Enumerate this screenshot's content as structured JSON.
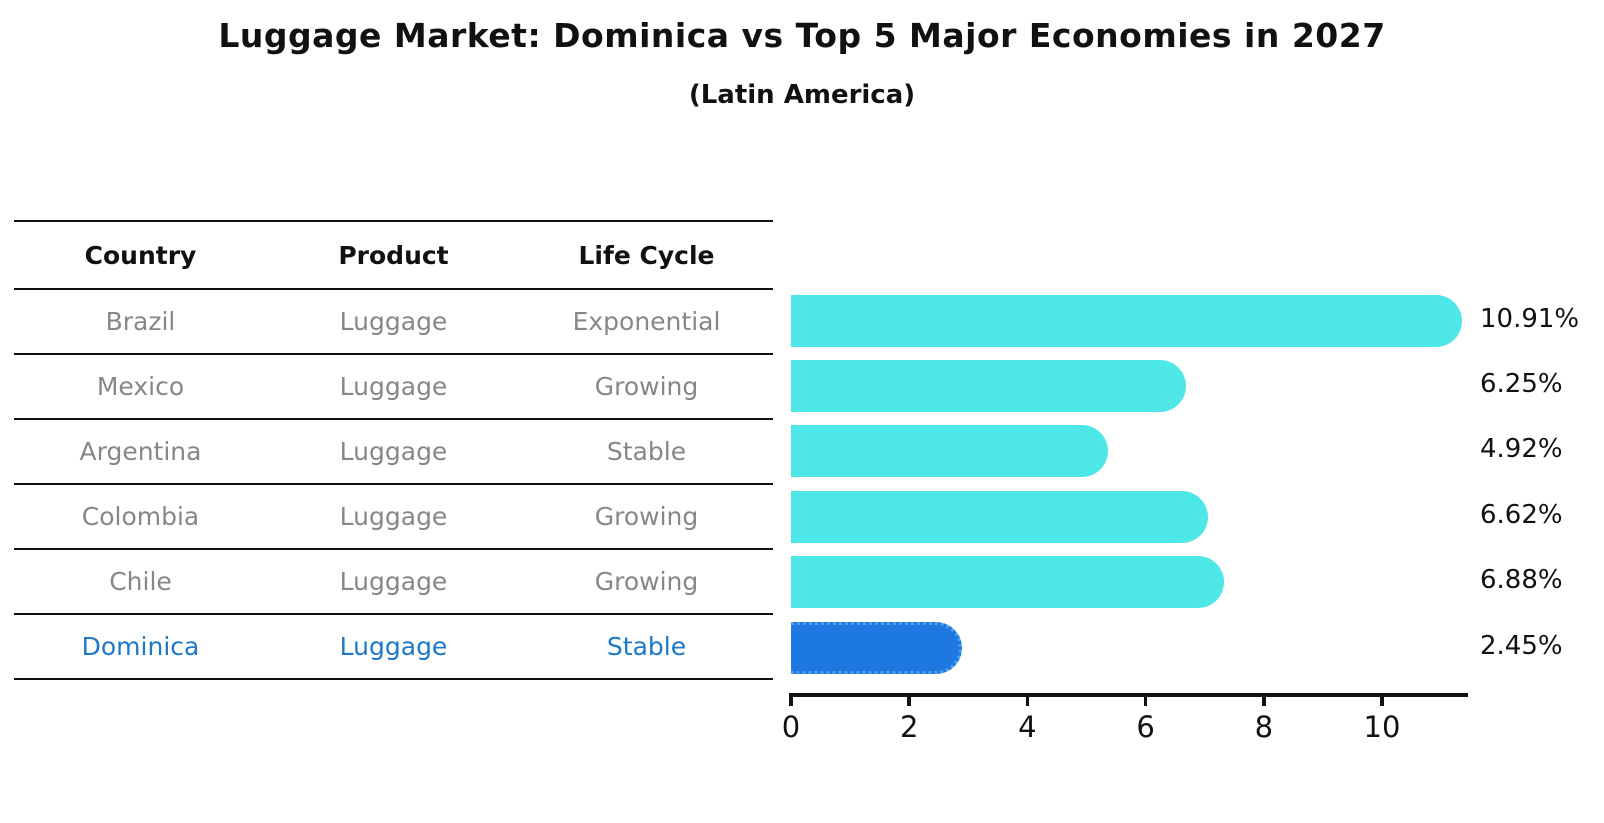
{
  "title": "Luggage Market: Dominica vs Top 5 Major Economies in 2027",
  "subtitle": "(Latin America)",
  "table": {
    "headers": [
      "Country",
      "Product",
      "Life Cycle"
    ],
    "rows": [
      {
        "country": "Brazil",
        "product": "Luggage",
        "life_cycle": "Exponential",
        "highlight": false
      },
      {
        "country": "Mexico",
        "product": "Luggage",
        "life_cycle": "Growing",
        "highlight": false
      },
      {
        "country": "Argentina",
        "product": "Luggage",
        "life_cycle": "Stable",
        "highlight": false
      },
      {
        "country": "Colombia",
        "product": "Luggage",
        "life_cycle": "Growing",
        "highlight": false
      },
      {
        "country": "Chile",
        "product": "Luggage",
        "life_cycle": "Growing",
        "highlight": false
      },
      {
        "country": "Dominica",
        "product": "Luggage",
        "life_cycle": "Stable",
        "highlight": true
      }
    ]
  },
  "chart_data": {
    "type": "bar",
    "orientation": "horizontal",
    "categories": [
      "Brazil",
      "Mexico",
      "Argentina",
      "Colombia",
      "Chile",
      "Dominica"
    ],
    "values": [
      10.91,
      6.25,
      4.92,
      6.62,
      6.88,
      2.45
    ],
    "value_labels": [
      "10.91%",
      "6.25%",
      "4.92%",
      "6.62%",
      "6.88%",
      "2.45%"
    ],
    "highlight_index": 5,
    "xticks": [
      "0",
      "2",
      "4",
      "6",
      "8",
      "10"
    ],
    "xtick_values": [
      0,
      2,
      4,
      6,
      8,
      10
    ],
    "xlim": [
      0,
      11.45
    ],
    "grid": false,
    "legend": false,
    "title": "Luggage Market: Dominica vs Top 5 Major Economies in 2027",
    "subtitle": "(Latin America)",
    "xlabel": "",
    "ylabel": ""
  },
  "colors": {
    "bar": "#4DE7E7",
    "highlight_bar": "#1E78E1",
    "highlight_bar_edge": "#4FA0EC",
    "highlight_text": "#1D78C8",
    "row_text": "#878787",
    "line": "#111111"
  }
}
